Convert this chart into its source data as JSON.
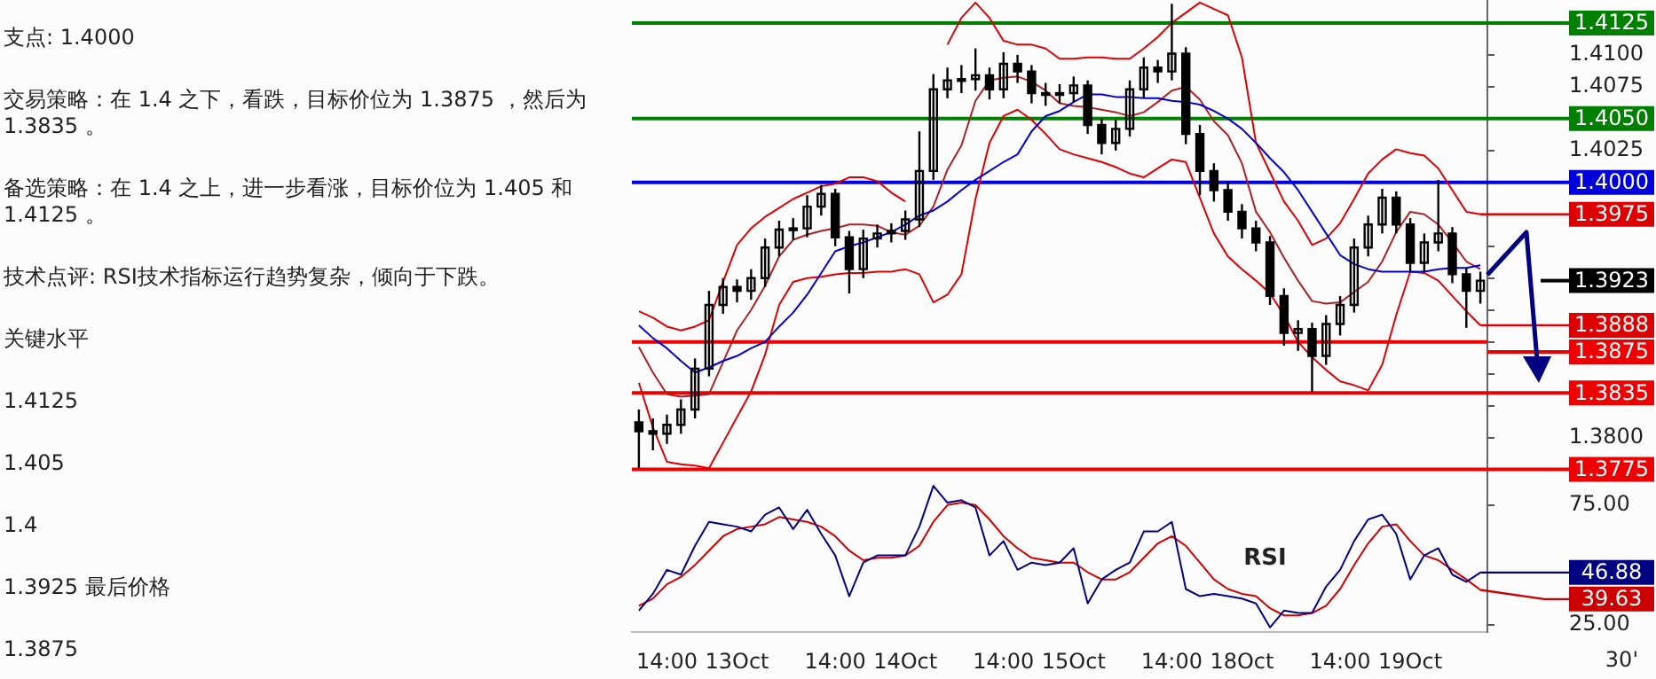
{
  "chart_data": [
    {
      "type": "other",
      "annotations": [
        "支点: 1.4000",
        "交易策略：在 1.4 之下，看跌，目标价位为 1.3875 ，然后为 1.3835 。",
        "备选策略：在 1.4 之上，进一步看涨，目标价位为 1.405 和 1.4125 。",
        "技术点评: RSI技术指标运行趋势复杂，倾向于下跌。",
        "关键水平",
        "1.4125",
        "1.405",
        "1.4",
        "1.3925 最后价格",
        "1.3875"
      ]
    },
    {
      "type": "candlestick",
      "color": "#000000",
      "tick_labels": "y",
      "categories": [
        null,
        null,
        null,
        null,
        null,
        null,
        null,
        null,
        null,
        null,
        null,
        null,
        null,
        null,
        null,
        null,
        null,
        null,
        null,
        null,
        null,
        null,
        null,
        null,
        null,
        null,
        null,
        null,
        null,
        null,
        null,
        null,
        null,
        null,
        null,
        null,
        null,
        null,
        null,
        null,
        null,
        null,
        null,
        null,
        null,
        null,
        null,
        null,
        null,
        null,
        null,
        null,
        null,
        null,
        null,
        null,
        null,
        null,
        null,
        null,
        null
      ],
      "ohlc": [
        [
          1.3812,
          1.3822,
          1.3776,
          1.3805
        ],
        [
          1.3805,
          1.3815,
          1.379,
          1.3803
        ],
        [
          1.3803,
          1.3818,
          1.3795,
          1.381
        ],
        [
          1.381,
          1.383,
          1.3803,
          1.3822
        ],
        [
          1.3822,
          1.3862,
          1.3815,
          1.3854
        ],
        [
          1.3854,
          1.3915,
          1.3848,
          1.3904
        ],
        [
          1.3904,
          1.3925,
          1.3897,
          1.3918
        ],
        [
          1.3918,
          1.3924,
          1.3906,
          1.3915
        ],
        [
          1.3915,
          1.3932,
          1.3908,
          1.3925
        ],
        [
          1.3925,
          1.3956,
          1.3918,
          1.3949
        ],
        [
          1.3949,
          1.397,
          1.3942,
          1.3963
        ],
        [
          1.3963,
          1.3972,
          1.3955,
          1.3964
        ],
        [
          1.3964,
          1.399,
          1.3957,
          1.3981
        ],
        [
          1.3981,
          1.3998,
          1.3974,
          1.3991
        ],
        [
          1.3991,
          1.3995,
          1.395,
          1.3957
        ],
        [
          1.3957,
          1.3962,
          1.3913,
          1.3932
        ],
        [
          1.3932,
          1.3963,
          1.3925,
          1.3956
        ],
        [
          1.3956,
          1.3967,
          1.3949,
          1.396
        ],
        [
          1.396,
          1.3968,
          1.3953,
          1.3962
        ],
        [
          1.3962,
          1.3978,
          1.3955,
          1.3971
        ],
        [
          1.3971,
          1.404,
          1.3965,
          1.4009
        ],
        [
          1.4009,
          1.4085,
          1.4002,
          1.4073
        ],
        [
          1.4073,
          1.409,
          1.4066,
          1.408
        ],
        [
          1.408,
          1.4092,
          1.407,
          1.4081
        ],
        [
          1.4081,
          1.4105,
          1.4072,
          1.4084
        ],
        [
          1.4084,
          1.409,
          1.4065,
          1.4073
        ],
        [
          1.4073,
          1.4102,
          1.4066,
          1.4093
        ],
        [
          1.4093,
          1.41,
          1.4078,
          1.4087
        ],
        [
          1.4087,
          1.4092,
          1.4062,
          1.407
        ],
        [
          1.407,
          1.4078,
          1.406,
          1.4069
        ],
        [
          1.4069,
          1.4077,
          1.4062,
          1.407
        ],
        [
          1.407,
          1.4083,
          1.4063,
          1.4076
        ],
        [
          1.4076,
          1.408,
          1.4038,
          1.4045
        ],
        [
          1.4045,
          1.405,
          1.4022,
          1.4031
        ],
        [
          1.4031,
          1.4049,
          1.4025,
          1.4042
        ],
        [
          1.4042,
          1.408,
          1.4036,
          1.4073
        ],
        [
          1.4073,
          1.4098,
          1.4066,
          1.409
        ],
        [
          1.409,
          1.4096,
          1.4078,
          1.4087
        ],
        [
          1.4087,
          1.414,
          1.408,
          1.4101
        ],
        [
          1.4101,
          1.4106,
          1.403,
          1.4038
        ],
        [
          1.4038,
          1.4045,
          1.399,
          1.4009
        ],
        [
          1.4009,
          1.4015,
          1.3985,
          1.3994
        ],
        [
          1.3994,
          1.4,
          1.397,
          1.3977
        ],
        [
          1.3977,
          1.3983,
          1.3956,
          1.3964
        ],
        [
          1.3964,
          1.397,
          1.3946,
          1.3953
        ],
        [
          1.3953,
          1.3958,
          1.3904,
          1.3911
        ],
        [
          1.3911,
          1.3917,
          1.3872,
          1.3882
        ],
        [
          1.3882,
          1.3892,
          1.3868,
          1.3885
        ],
        [
          1.3885,
          1.389,
          1.3836,
          1.3864
        ],
        [
          1.3864,
          1.3896,
          1.3857,
          1.3889
        ],
        [
          1.3889,
          1.3911,
          1.388,
          1.3904
        ],
        [
          1.3904,
          1.3956,
          1.3898,
          1.3949
        ],
        [
          1.3949,
          1.3974,
          1.3942,
          1.3967
        ],
        [
          1.3967,
          1.3995,
          1.396,
          1.3988
        ],
        [
          1.3988,
          1.3993,
          1.396,
          1.3967
        ],
        [
          1.3967,
          1.3972,
          1.393,
          1.3937
        ],
        [
          1.3937,
          1.396,
          1.393,
          1.3953
        ],
        [
          1.3953,
          1.4002,
          1.3946,
          1.396
        ],
        [
          1.396,
          1.3965,
          1.3921,
          1.3928
        ],
        [
          1.3928,
          1.3933,
          1.3886,
          1.3915
        ],
        [
          1.3915,
          1.393,
          1.3905,
          1.3923
        ]
      ],
      "series": [
        {
          "type": "line",
          "color": "#0000cc",
          "values": [
            1.3888,
            1.3878,
            1.387,
            1.386,
            1.3851,
            1.3855,
            1.386,
            1.3864,
            1.387,
            1.3875,
            1.3887,
            1.3898,
            1.3912,
            1.3929,
            1.3946,
            1.395,
            1.3953,
            1.3957,
            1.3961,
            1.3967,
            1.3974,
            1.3978,
            1.3985,
            1.3994,
            1.4002,
            1.4009,
            1.4016,
            1.4022,
            1.404,
            1.4052,
            1.4056,
            1.4063,
            1.4069,
            1.4069,
            1.4067,
            1.4067,
            1.4066,
            1.4066,
            1.4064,
            1.4063,
            1.4061,
            1.4056,
            1.405,
            1.4042,
            1.4031,
            1.4019,
            1.4008,
            1.3994,
            1.3977,
            1.396,
            1.3943,
            1.3936,
            1.3932,
            1.393,
            1.393,
            1.393,
            1.393,
            1.3932,
            1.3933,
            1.3933,
            1.3935
          ]
        },
        {
          "type": "line",
          "color": "#dd0000",
          "value_labels": [
            null,
            null,
            null,
            null,
            null,
            null,
            null,
            null,
            null,
            null,
            null,
            null,
            null,
            null,
            null,
            null,
            null,
            null,
            null,
            null,
            null,
            null,
            null,
            null,
            null,
            null,
            null,
            null,
            null,
            null,
            null,
            null,
            null,
            null,
            null,
            null,
            null,
            null,
            null,
            null,
            null,
            null,
            null,
            null,
            null,
            null,
            null,
            null,
            null,
            null,
            null,
            null,
            null,
            null,
            null,
            null,
            null,
            null,
            null,
            null,
            "1.3975"
          ],
          "values": [
            1.3899,
            1.3894,
            1.3887,
            1.3884,
            1.3887,
            1.3892,
            1.3922,
            1.3951,
            1.3964,
            1.3973,
            1.398,
            1.3987,
            1.3992,
            1.3997,
            1.3999,
            1.4004,
            1.4004,
            1.4001,
            1.3992,
            1.3985,
            null,
            null,
            1.4108,
            1.4129,
            1.4141,
            1.4129,
            1.4111,
            1.4108,
            1.4108,
            1.4105,
            1.4097,
            1.4097,
            1.4098,
            1.4098,
            1.4097,
            1.4097,
            1.4105,
            1.4114,
            1.4125,
            1.4133,
            1.4141,
            1.4136,
            1.4131,
            1.4098,
            1.4031,
            1.4008,
            1.3985,
            1.397,
            1.3951,
            1.3956,
            1.3968,
            1.3987,
            1.4007,
            1.4018,
            1.4026,
            1.4023,
            1.4021,
            1.4011,
            1.3994,
            1.3977,
            1.3975
          ]
        },
        {
          "type": "line",
          "color": "#aa2222",
          "values": [
            1.3871,
            1.3851,
            1.3834,
            1.3832,
            1.3833,
            1.3834,
            1.3859,
            1.3884,
            1.39,
            1.3919,
            1.3942,
            1.3955,
            1.3959,
            1.3962,
            1.3964,
            1.3967,
            1.3967,
            1.3966,
            1.3961,
            1.3959,
            1.3966,
            1.3981,
            1.401,
            1.4029,
            1.4064,
            1.408,
            1.4082,
            1.4083,
            1.4079,
            1.4072,
            1.4062,
            1.406,
            1.4059,
            1.4057,
            1.4055,
            1.4052,
            1.4055,
            1.4063,
            1.4072,
            1.4075,
            1.4065,
            1.4048,
            1.4037,
            1.4015,
            1.3977,
            1.3961,
            1.3941,
            1.3923,
            1.3907,
            1.3905,
            1.3906,
            1.3914,
            1.3922,
            1.3938,
            1.3961,
            1.3977,
            1.3975,
            1.3967,
            1.3953,
            1.3938,
            1.3932
          ]
        },
        {
          "type": "line",
          "color": "#dd0000",
          "value_labels": [
            null,
            null,
            null,
            null,
            null,
            null,
            null,
            null,
            null,
            null,
            null,
            null,
            null,
            null,
            null,
            null,
            null,
            null,
            null,
            null,
            null,
            null,
            null,
            null,
            null,
            null,
            null,
            null,
            null,
            null,
            null,
            null,
            null,
            null,
            null,
            null,
            null,
            null,
            null,
            null,
            null,
            null,
            null,
            null,
            null,
            null,
            null,
            null,
            null,
            null,
            null,
            null,
            null,
            null,
            null,
            null,
            null,
            null,
            null,
            null,
            "1.3888"
          ],
          "values": [
            1.3843,
            1.3808,
            1.3781,
            1.3779,
            1.3778,
            1.3776,
            1.3796,
            1.3816,
            1.3836,
            1.3865,
            1.3904,
            1.3922,
            1.3925,
            1.3926,
            1.3928,
            1.3929,
            1.3929,
            1.393,
            1.393,
            1.3932,
            1.3928,
            1.3906,
            1.3912,
            1.3928,
            1.3987,
            1.4031,
            1.4052,
            1.4057,
            1.4049,
            1.4038,
            1.4026,
            1.4022,
            1.4019,
            1.4016,
            1.4012,
            1.4007,
            1.4004,
            1.4011,
            1.4018,
            1.4016,
            1.3988,
            1.396,
            1.3942,
            1.3932,
            1.3923,
            1.3913,
            1.3896,
            1.3875,
            1.3863,
            1.3853,
            1.3844,
            1.3841,
            1.3837,
            1.3857,
            1.3896,
            1.393,
            1.3929,
            1.3923,
            1.3911,
            1.3899,
            1.3888
          ]
        }
      ],
      "ylim": [
        1.3765,
        1.4143
      ],
      "yticks": [
        {
          "value": 1.3775,
          "label": null
        },
        {
          "value": 1.38,
          "label": "1.3800"
        },
        {
          "value": 1.3825,
          "label": null
        },
        {
          "value": 1.385,
          "label": null
        },
        {
          "value": 1.3875,
          "label": null
        },
        {
          "value": 1.39,
          "label": null
        },
        {
          "value": 1.3925,
          "label": null
        },
        {
          "value": 1.395,
          "label": null
        },
        {
          "value": 1.3975,
          "label": null
        },
        {
          "value": 1.4,
          "label": null
        },
        {
          "value": 1.4025,
          "label": "1.4025"
        },
        {
          "value": 1.405,
          "label": null
        },
        {
          "value": 1.4075,
          "label": "1.4075"
        },
        {
          "value": 1.41,
          "label": "1.4100"
        },
        {
          "value": 1.4125,
          "label": null
        }
      ],
      "ref_lines": [
        {
          "axis": "y",
          "value": 1.4125,
          "label": "1.4125",
          "color": "#008000"
        },
        {
          "axis": "y",
          "value": 1.405,
          "label": "1.4050",
          "color": "#008000"
        },
        {
          "axis": "y",
          "value": 1.4,
          "label": "1.4000",
          "color": "#0000dd"
        },
        {
          "axis": "y",
          "value": 1.3875,
          "label": "1.3875",
          "color": "#ee0000"
        },
        {
          "axis": "y",
          "value": 1.3835,
          "label": "1.3835",
          "color": "#ee0000"
        },
        {
          "axis": "y",
          "value": 1.3775,
          "label": "1.3775",
          "color": "#ee0000"
        }
      ],
      "value_labels": [
        null,
        null,
        null,
        null,
        null,
        null,
        null,
        null,
        null,
        null,
        null,
        null,
        null,
        null,
        null,
        null,
        null,
        null,
        null,
        null,
        null,
        null,
        null,
        null,
        null,
        null,
        null,
        null,
        null,
        null,
        null,
        null,
        null,
        null,
        null,
        null,
        null,
        null,
        null,
        null,
        null,
        null,
        null,
        null,
        null,
        null,
        null,
        null,
        null,
        null,
        null,
        null,
        null,
        null,
        null,
        null,
        null,
        null,
        null,
        null,
        "1.3923"
      ]
    },
    {
      "type": "line",
      "title": "RSI",
      "xlabel": "30'",
      "categories": [
        null,
        null,
        "14:00",
        null,
        null,
        null,
        null,
        "13Oct",
        null,
        null,
        null,
        null,
        null,
        null,
        "14:00",
        null,
        null,
        null,
        null,
        "14Oct",
        null,
        null,
        null,
        null,
        null,
        null,
        "14:00",
        null,
        null,
        null,
        null,
        "15Oct",
        null,
        null,
        null,
        null,
        null,
        null,
        "14:00",
        null,
        null,
        null,
        null,
        "18Oct",
        null,
        null,
        null,
        null,
        null,
        null,
        "14:00",
        null,
        null,
        null,
        null,
        "19Oct",
        null,
        null,
        null,
        null,
        null
      ],
      "series": [
        {
          "color": "#000080",
          "value_labels": [
            null,
            null,
            null,
            null,
            null,
            null,
            null,
            null,
            null,
            null,
            null,
            null,
            null,
            null,
            null,
            null,
            null,
            null,
            null,
            null,
            null,
            null,
            null,
            null,
            null,
            null,
            null,
            null,
            null,
            null,
            null,
            null,
            null,
            null,
            null,
            null,
            null,
            null,
            null,
            null,
            null,
            null,
            null,
            null,
            null,
            null,
            null,
            null,
            null,
            null,
            null,
            null,
            null,
            null,
            null,
            null,
            null,
            null,
            null,
            null,
            "46.88"
          ],
          "values": [
            31,
            38,
            48,
            46,
            58,
            68,
            67,
            66,
            64,
            71,
            74,
            65,
            73,
            63,
            54,
            37,
            51,
            54,
            54,
            54,
            66,
            83,
            76,
            77,
            74,
            54,
            60,
            48,
            51,
            50,
            51,
            57,
            34,
            44,
            48,
            51,
            64,
            64,
            68,
            40,
            37,
            38,
            37,
            36,
            34,
            24,
            31,
            30,
            30,
            41,
            48,
            60,
            69,
            71,
            63,
            44,
            54,
            57,
            46,
            43,
            46.88
          ]
        },
        {
          "color": "#cc0000",
          "value_labels": [
            null,
            null,
            null,
            null,
            null,
            null,
            null,
            null,
            null,
            null,
            null,
            null,
            null,
            null,
            null,
            null,
            null,
            null,
            null,
            null,
            null,
            null,
            null,
            null,
            null,
            null,
            null,
            null,
            null,
            null,
            null,
            null,
            null,
            null,
            null,
            null,
            null,
            null,
            null,
            null,
            null,
            null,
            null,
            null,
            null,
            null,
            null,
            null,
            null,
            null,
            null,
            null,
            null,
            null,
            null,
            null,
            null,
            null,
            null,
            null,
            "39.63"
          ],
          "values": [
            33,
            36,
            42,
            45,
            50,
            56,
            62,
            65,
            66,
            67,
            70,
            69,
            68,
            66,
            62,
            56,
            52,
            53,
            53,
            54,
            58,
            68,
            75,
            76,
            75,
            69,
            62,
            57,
            53,
            52,
            51,
            51,
            47,
            44,
            44,
            47,
            53,
            59,
            62,
            58,
            51,
            44,
            40,
            38,
            37,
            32,
            29,
            29,
            30,
            33,
            40,
            50,
            59,
            66,
            67,
            60,
            54,
            52,
            48,
            44,
            39.63
          ]
        }
      ],
      "ylim": [
        22,
        86
      ],
      "yticks": [
        {
          "value": 25,
          "label": "25.00"
        },
        {
          "value": 75,
          "label": "75.00"
        }
      ]
    }
  ]
}
